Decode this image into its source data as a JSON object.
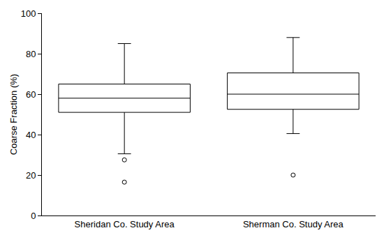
{
  "chart_data": {
    "type": "box",
    "ylabel": "Coarse Fraction (%)",
    "categories": [
      "Sheridan Co. Study Area",
      "Sherman Co. Study Area"
    ],
    "lowerfence": [
      30.5,
      40.5
    ],
    "q1": [
      51,
      52.5
    ],
    "median": [
      58,
      60
    ],
    "q3": [
      65,
      70.5
    ],
    "upperfence": [
      85,
      88
    ],
    "outliers": [
      [
        27.5,
        16.5
      ],
      [
        20
      ]
    ],
    "color": "#000000",
    "marker": "open circle",
    "ylim": [
      0,
      100
    ],
    "yticks": [
      0,
      20,
      40,
      60,
      80,
      100
    ],
    "grid": false
  }
}
